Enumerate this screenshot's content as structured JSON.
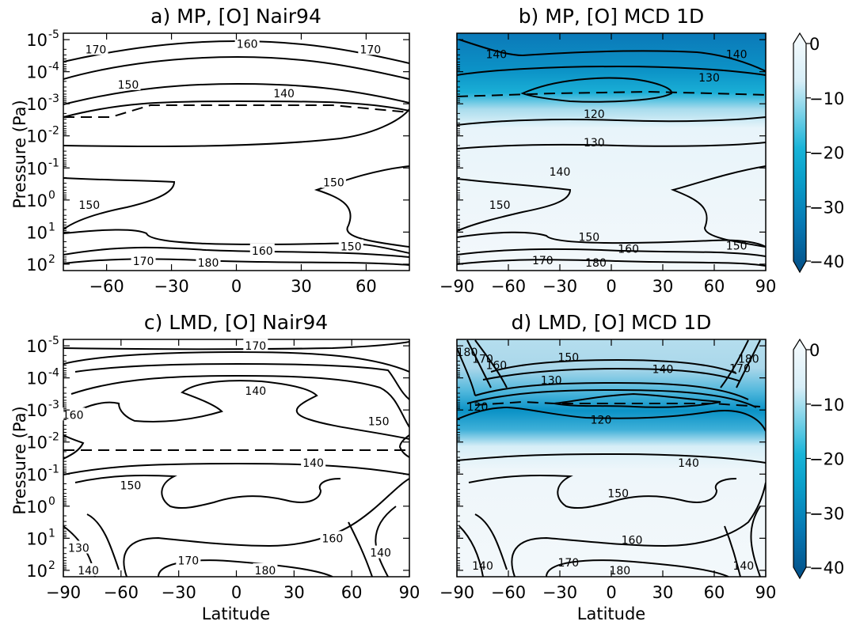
{
  "figure": {
    "colorbar_ticks": [
      "0",
      "−10",
      "−20",
      "−30",
      "−40"
    ],
    "colors": {
      "dark": "#035a8f",
      "mid": "#0aa8cc",
      "light": "#e8f4fa",
      "contour": "#000000"
    }
  },
  "chart_data": [
    {
      "type": "contour",
      "panel": "a",
      "title": "a) MP, [O] Nair94",
      "xlabel": "",
      "ylabel": "Pressure (Pa)",
      "xticks": [
        "−60",
        "−30",
        "0",
        "30",
        "60"
      ],
      "xtick_values": [
        -60,
        -30,
        0,
        30,
        60
      ],
      "yticks": [
        {
          "b": "10",
          "e": "-5",
          "v": -5
        },
        {
          "b": "10",
          "e": "-4",
          "v": -4
        },
        {
          "b": "10",
          "e": "-3",
          "v": -3
        },
        {
          "b": "10",
          "e": "-2",
          "v": -2
        },
        {
          "b": "10",
          "e": "-1",
          "v": -1
        },
        {
          "b": "10",
          "e": "0",
          "v": 0
        },
        {
          "b": "10",
          "e": "1",
          "v": 1
        },
        {
          "b": "10",
          "e": "2",
          "v": 2
        }
      ],
      "xlim": [
        -80,
        80
      ],
      "ylim_log10": [
        -5.2,
        2.2
      ],
      "filled": false,
      "contour_labels": [
        {
          "text": "170",
          "lat": -65,
          "logp": -4.7
        },
        {
          "text": "160",
          "lat": 5,
          "logp": -4.87
        },
        {
          "text": "170",
          "lat": 62,
          "logp": -4.7
        },
        {
          "text": "150",
          "lat": -50,
          "logp": -3.6
        },
        {
          "text": "140",
          "lat": 22,
          "logp": -3.32
        },
        {
          "text": "150",
          "lat": 45,
          "logp": -0.55
        },
        {
          "text": "150",
          "lat": -68,
          "logp": 0.15
        },
        {
          "text": "160",
          "lat": 12,
          "logp": 1.58
        },
        {
          "text": "150",
          "lat": 53,
          "logp": 1.45
        },
        {
          "text": "170",
          "lat": -43,
          "logp": 1.9
        },
        {
          "text": "180",
          "lat": -13,
          "logp": 1.95
        }
      ]
    },
    {
      "type": "contour",
      "panel": "b",
      "title": "b) MP, [O] MCD 1D",
      "xlabel": "",
      "ylabel": "",
      "xticks": [
        "−90",
        "−60",
        "−30",
        "0",
        "30",
        "60",
        "90"
      ],
      "xtick_values": [
        -90,
        -60,
        -30,
        0,
        30,
        60,
        90
      ],
      "yticks": [],
      "xlim": [
        -90,
        90
      ],
      "ylim_log10": [
        -5.2,
        2.2
      ],
      "filled": true,
      "contour_labels": [
        {
          "text": "140",
          "lat": -67,
          "logp": -4.55
        },
        {
          "text": "140",
          "lat": 73,
          "logp": -4.55
        },
        {
          "text": "130",
          "lat": 57,
          "logp": -3.82
        },
        {
          "text": "120",
          "lat": -10,
          "logp": -2.68
        },
        {
          "text": "130",
          "lat": -10,
          "logp": -1.8
        },
        {
          "text": "140",
          "lat": -30,
          "logp": -0.88
        },
        {
          "text": "150",
          "lat": -65,
          "logp": 0.15
        },
        {
          "text": "150",
          "lat": -13,
          "logp": 1.15
        },
        {
          "text": "160",
          "lat": 10,
          "logp": 1.52
        },
        {
          "text": "150",
          "lat": 73,
          "logp": 1.42
        },
        {
          "text": "170",
          "lat": -40,
          "logp": 1.88
        },
        {
          "text": "180",
          "lat": -9,
          "logp": 1.95
        }
      ]
    },
    {
      "type": "contour",
      "panel": "c",
      "title": "c) LMD, [O] Nair94",
      "xlabel": "Latitude",
      "ylabel": "Pressure (Pa)",
      "xticks": [
        "−90",
        "−60",
        "−30",
        "0",
        "30",
        "60",
        "90"
      ],
      "xtick_values": [
        -90,
        -60,
        -30,
        0,
        30,
        60,
        90
      ],
      "yticks": [
        {
          "b": "10",
          "e": "-5",
          "v": -5
        },
        {
          "b": "10",
          "e": "-4",
          "v": -4
        },
        {
          "b": "10",
          "e": "-3",
          "v": -3
        },
        {
          "b": "10",
          "e": "-2",
          "v": -2
        },
        {
          "b": "10",
          "e": "-1",
          "v": -1
        },
        {
          "b": "10",
          "e": "0",
          "v": 0
        },
        {
          "b": "10",
          "e": "1",
          "v": 1
        },
        {
          "b": "10",
          "e": "2",
          "v": 2
        }
      ],
      "xlim": [
        -90,
        90
      ],
      "ylim_log10": [
        -5.2,
        2.2
      ],
      "filled": false,
      "contour_labels": [
        {
          "text": "170",
          "lat": 10,
          "logp": -5.0
        },
        {
          "text": "140",
          "lat": 10,
          "logp": -3.6
        },
        {
          "text": "160",
          "lat": -85,
          "logp": -2.85
        },
        {
          "text": "150",
          "lat": 74,
          "logp": -2.65
        },
        {
          "text": "140",
          "lat": 40,
          "logp": -1.35
        },
        {
          "text": "150",
          "lat": -55,
          "logp": -0.65
        },
        {
          "text": "160",
          "lat": 50,
          "logp": 1.0
        },
        {
          "text": "130",
          "lat": -82,
          "logp": 1.3
        },
        {
          "text": "140",
          "lat": 75,
          "logp": 1.45
        },
        {
          "text": "170",
          "lat": -25,
          "logp": 1.7
        },
        {
          "text": "140",
          "lat": -77,
          "logp": 2.0
        },
        {
          "text": "180",
          "lat": 15,
          "logp": 2.0
        }
      ]
    },
    {
      "type": "contour",
      "panel": "d",
      "title": "d) LMD, [O] MCD 1D",
      "xlabel": "Latitude",
      "ylabel": "",
      "xticks": [
        "−90",
        "−60",
        "−30",
        "0",
        "30",
        "60",
        "90"
      ],
      "xtick_values": [
        -90,
        -60,
        -30,
        0,
        30,
        60,
        90
      ],
      "yticks": [],
      "xlim": [
        -90,
        90
      ],
      "ylim_log10": [
        -5.2,
        2.2
      ],
      "filled": true,
      "contour_labels": [
        {
          "text": "180",
          "lat": -84,
          "logp": -4.8
        },
        {
          "text": "170",
          "lat": -75,
          "logp": -4.6
        },
        {
          "text": "160",
          "lat": -67,
          "logp": -4.4
        },
        {
          "text": "150",
          "lat": -25,
          "logp": -4.65
        },
        {
          "text": "140",
          "lat": 30,
          "logp": -4.28
        },
        {
          "text": "130",
          "lat": -35,
          "logp": -3.93
        },
        {
          "text": "120",
          "lat": -78,
          "logp": -3.1
        },
        {
          "text": "120",
          "lat": -6,
          "logp": -2.7
        },
        {
          "text": "140",
          "lat": 45,
          "logp": -1.35
        },
        {
          "text": "150",
          "lat": 4,
          "logp": -0.4
        },
        {
          "text": "160",
          "lat": 12,
          "logp": 1.05
        },
        {
          "text": "170",
          "lat": -25,
          "logp": 1.75
        },
        {
          "text": "140",
          "lat": -75,
          "logp": 1.85
        },
        {
          "text": "180",
          "lat": 5,
          "logp": 2.0
        },
        {
          "text": "140",
          "lat": 77,
          "logp": 1.85
        },
        {
          "text": "180",
          "lat": 80,
          "logp": -4.6
        },
        {
          "text": "170",
          "lat": 75,
          "logp": -4.3
        }
      ]
    }
  ]
}
